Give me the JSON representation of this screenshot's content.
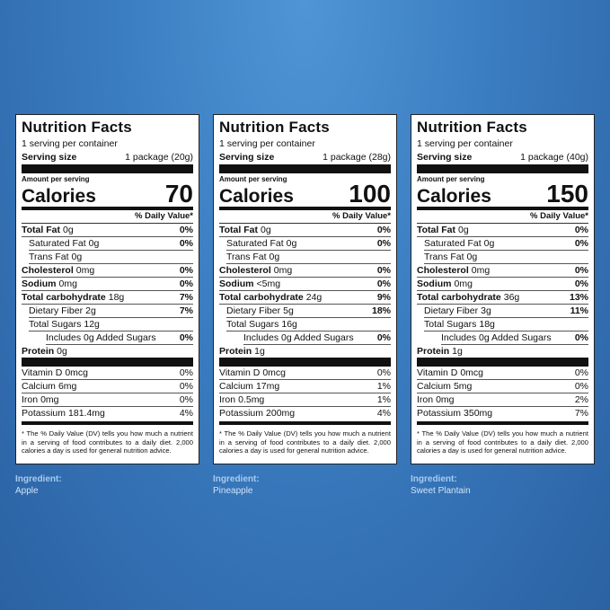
{
  "labels": [
    {
      "title": "Nutrition Facts",
      "servings": "1 serving per container",
      "serving_size_label": "Serving size",
      "serving_size": "1 package (20g)",
      "amount_per_serving": "Amount per serving",
      "calories_label": "Calories",
      "calories": "70",
      "dv_header": "% Daily Value*",
      "nutrients": [
        {
          "name": "Total Fat",
          "amount": "0g",
          "dv": "0%"
        },
        {
          "name": "Saturated Fat",
          "amount": "0g",
          "dv": "0%"
        },
        {
          "name": "Trans Fat",
          "amount": "0g"
        },
        {
          "name": "Cholesterol",
          "amount": "0mg",
          "dv": "0%"
        },
        {
          "name": "Sodium",
          "amount": "0mg",
          "dv": "0%"
        },
        {
          "name": "Total carbohydrate",
          "amount": "18g",
          "dv": "7%"
        },
        {
          "name": "Dietary Fiber",
          "amount": "2g",
          "dv": "7%"
        },
        {
          "name": "Total Sugars",
          "amount": "12g"
        },
        {
          "name": "Includes 0g Added Sugars",
          "dv": "0%"
        },
        {
          "name": "Protein",
          "amount": "0g"
        }
      ],
      "vitamins": [
        {
          "name": "Vitamin D",
          "amount": "0mcg",
          "dv": "0%"
        },
        {
          "name": "Calcium",
          "amount": "6mg",
          "dv": "0%"
        },
        {
          "name": "Iron",
          "amount": "0mg",
          "dv": "0%"
        },
        {
          "name": "Potassium",
          "amount": "181.4mg",
          "dv": "4%"
        }
      ],
      "footnote": "* The % Daily Value (DV) tells you how much a nutrient in a serving of food contributes to a daily diet. 2,000 calories a day is used for general nutrition advice.",
      "ingredient_label": "Ingredient:",
      "ingredient": "Apple"
    },
    {
      "title": "Nutrition Facts",
      "servings": "1 serving per container",
      "serving_size_label": "Serving size",
      "serving_size": "1 package (28g)",
      "amount_per_serving": "Amount per serving",
      "calories_label": "Calories",
      "calories": "100",
      "dv_header": "% Daily Value*",
      "nutrients": [
        {
          "name": "Total Fat",
          "amount": "0g",
          "dv": "0%"
        },
        {
          "name": "Saturated Fat",
          "amount": "0g",
          "dv": "0%"
        },
        {
          "name": "Trans Fat",
          "amount": "0g"
        },
        {
          "name": "Cholesterol",
          "amount": "0mg",
          "dv": "0%"
        },
        {
          "name": "Sodium",
          "amount": "<5mg",
          "dv": "0%"
        },
        {
          "name": "Total carbohydrate",
          "amount": "24g",
          "dv": "9%"
        },
        {
          "name": "Dietary Fiber",
          "amount": "5g",
          "dv": "18%"
        },
        {
          "name": "Total Sugars",
          "amount": "16g"
        },
        {
          "name": "Includes 0g Added Sugars",
          "dv": "0%"
        },
        {
          "name": "Protein",
          "amount": "1g"
        }
      ],
      "vitamins": [
        {
          "name": "Vitamin D",
          "amount": "0mcg",
          "dv": "0%"
        },
        {
          "name": "Calcium",
          "amount": "17mg",
          "dv": "1%"
        },
        {
          "name": "Iron",
          "amount": "0.5mg",
          "dv": "1%"
        },
        {
          "name": "Potassium",
          "amount": "200mg",
          "dv": "4%"
        }
      ],
      "footnote": "* The % Daily Value (DV) tells you how much a nutrient in a serving of food contributes to a daily diet. 2,000 calories a day is used for general nutrition advice.",
      "ingredient_label": "Ingredient:",
      "ingredient": "Pineapple"
    },
    {
      "title": "Nutrition Facts",
      "servings": "1 serving per container",
      "serving_size_label": "Serving size",
      "serving_size": "1 package (40g)",
      "amount_per_serving": "Amount per serving",
      "calories_label": "Calories",
      "calories": "150",
      "dv_header": "% Daily Value*",
      "nutrients": [
        {
          "name": "Total Fat",
          "amount": "0g",
          "dv": "0%"
        },
        {
          "name": "Saturated Fat",
          "amount": "0g",
          "dv": "0%"
        },
        {
          "name": "Trans Fat",
          "amount": "0g"
        },
        {
          "name": "Cholesterol",
          "amount": "0mg",
          "dv": "0%"
        },
        {
          "name": "Sodium",
          "amount": "0mg",
          "dv": "0%"
        },
        {
          "name": "Total carbohydrate",
          "amount": "36g",
          "dv": "13%"
        },
        {
          "name": "Dietary Fiber",
          "amount": "3g",
          "dv": "11%"
        },
        {
          "name": "Total Sugars",
          "amount": "18g"
        },
        {
          "name": "Includes 0g Added Sugars",
          "dv": "0%"
        },
        {
          "name": "Protein",
          "amount": "1g"
        }
      ],
      "vitamins": [
        {
          "name": "Vitamin D",
          "amount": "0mcg",
          "dv": "0%"
        },
        {
          "name": "Calcium",
          "amount": "5mg",
          "dv": "0%"
        },
        {
          "name": "Iron",
          "amount": "0mg",
          "dv": "2%"
        },
        {
          "name": "Potassium",
          "amount": "350mg",
          "dv": "7%"
        }
      ],
      "footnote": "* The % Daily Value (DV) tells you how much a nutrient in a serving of food contributes to a daily diet. 2,000 calories a day is used for general nutrition advice.",
      "ingredient_label": "Ingredient:",
      "ingredient": "Sweet Plantain"
    }
  ]
}
